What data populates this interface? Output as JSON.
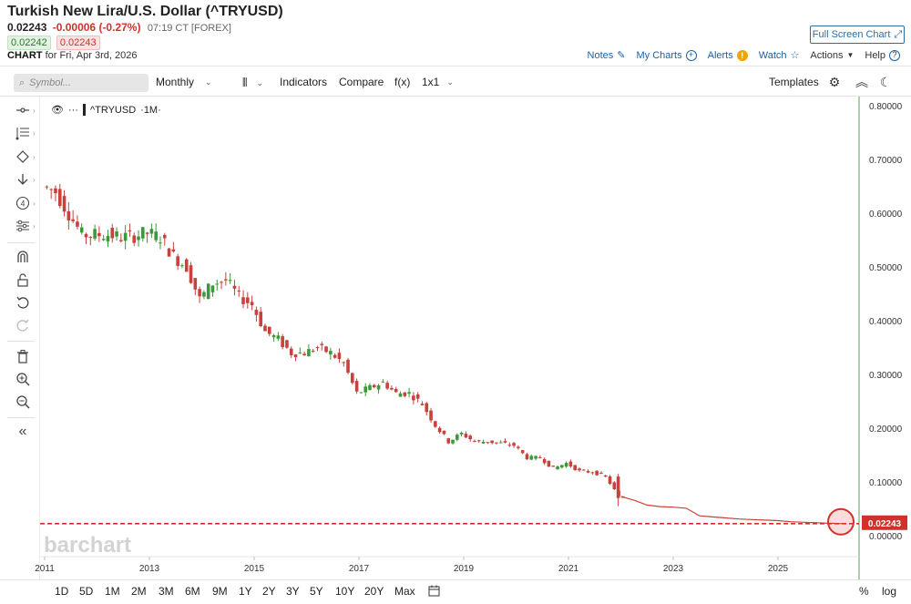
{
  "header": {
    "title": "Turkish New Lira/U.S. Dollar (^TRYUSD)",
    "price": "0.02243",
    "change": "-0.00006 (-0.27%)",
    "time": "07:19 CT [FOREX]",
    "bid": "0.02242",
    "ask": "0.02243",
    "chart_label": "CHART",
    "chart_date": "for Fri, Apr 3rd, 2026",
    "full_screen_label": "Full Screen Chart"
  },
  "top_links": {
    "notes": "Notes",
    "my_charts": "My Charts",
    "alerts": "Alerts",
    "watch": "Watch",
    "actions": "Actions",
    "help": "Help"
  },
  "toolbar": {
    "search_placeholder": "Symbol...",
    "interval": "Monthly",
    "indicators": "Indicators",
    "compare": "Compare",
    "fx": "f(x)",
    "layout": "1x1",
    "templates": "Templates"
  },
  "legend": {
    "dots": "···",
    "symbol": "^TRYUSD",
    "interval": "·1M·"
  },
  "watermark": "barchart",
  "ranges": [
    "1D",
    "5D",
    "1M",
    "2M",
    "3M",
    "6M",
    "9M",
    "1Y",
    "2Y",
    "3Y",
    "5Y",
    "10Y",
    "20Y",
    "Max"
  ],
  "bottom_right": {
    "percent": "%",
    "log": "log"
  },
  "left_tools": [
    "crosshair-tool-icon",
    "line-tool-icon",
    "shape-tool-icon",
    "arrow-tool-icon",
    "counter-tool-icon",
    "pattern-tool-icon",
    "magnet-icon",
    "unlock-icon",
    "undo-icon",
    "redo-icon",
    "trash-icon",
    "zoom-in-icon",
    "zoom-out-icon",
    "collapse-icon"
  ],
  "colors": {
    "up": "#3a9a3a",
    "down": "#c8413a",
    "last_price": "#d0322b",
    "link": "#1d5fa5"
  },
  "chart_data": {
    "type": "candlestick",
    "x_axis_type": "date",
    "ylim": [
      0,
      0.85
    ],
    "yticks": [
      "0.00000",
      "0.10000",
      "0.20000",
      "0.30000",
      "0.40000",
      "0.50000",
      "0.60000",
      "0.70000",
      "0.80000"
    ],
    "xticks": [
      "2011",
      "2013",
      "2015",
      "2017",
      "2019",
      "2021",
      "2023",
      "2025"
    ],
    "last_price_label": "0.02243",
    "last_price": 0.02243,
    "series": [
      {
        "d": "2011-01",
        "v": 0.65
      },
      {
        "d": "2011-04",
        "v": 0.64
      },
      {
        "d": "2011-07",
        "v": 0.6
      },
      {
        "d": "2011-10",
        "v": 0.56
      },
      {
        "d": "2012-01",
        "v": 0.56
      },
      {
        "d": "2012-04",
        "v": 0.56
      },
      {
        "d": "2012-07",
        "v": 0.555
      },
      {
        "d": "2012-10",
        "v": 0.558
      },
      {
        "d": "2013-01",
        "v": 0.563
      },
      {
        "d": "2013-04",
        "v": 0.555
      },
      {
        "d": "2013-07",
        "v": 0.52
      },
      {
        "d": "2013-10",
        "v": 0.5
      },
      {
        "d": "2014-01",
        "v": 0.44
      },
      {
        "d": "2014-04",
        "v": 0.47
      },
      {
        "d": "2014-07",
        "v": 0.475
      },
      {
        "d": "2014-10",
        "v": 0.445
      },
      {
        "d": "2015-01",
        "v": 0.43
      },
      {
        "d": "2015-04",
        "v": 0.38
      },
      {
        "d": "2015-07",
        "v": 0.365
      },
      {
        "d": "2015-10",
        "v": 0.34
      },
      {
        "d": "2016-01",
        "v": 0.34
      },
      {
        "d": "2016-04",
        "v": 0.35
      },
      {
        "d": "2016-07",
        "v": 0.34
      },
      {
        "d": "2016-10",
        "v": 0.32
      },
      {
        "d": "2017-01",
        "v": 0.265
      },
      {
        "d": "2017-04",
        "v": 0.275
      },
      {
        "d": "2017-07",
        "v": 0.285
      },
      {
        "d": "2017-10",
        "v": 0.265
      },
      {
        "d": "2018-01",
        "v": 0.265
      },
      {
        "d": "2018-04",
        "v": 0.245
      },
      {
        "d": "2018-07",
        "v": 0.205
      },
      {
        "d": "2018-10",
        "v": 0.175
      },
      {
        "d": "2019-01",
        "v": 0.19
      },
      {
        "d": "2019-04",
        "v": 0.175
      },
      {
        "d": "2019-07",
        "v": 0.175
      },
      {
        "d": "2019-10",
        "v": 0.172
      },
      {
        "d": "2020-01",
        "v": 0.168
      },
      {
        "d": "2020-04",
        "v": 0.145
      },
      {
        "d": "2020-07",
        "v": 0.145
      },
      {
        "d": "2020-10",
        "v": 0.125
      },
      {
        "d": "2021-01",
        "v": 0.135
      },
      {
        "d": "2021-04",
        "v": 0.12
      },
      {
        "d": "2021-07",
        "v": 0.118
      },
      {
        "d": "2021-10",
        "v": 0.11
      },
      {
        "d": "2022-01",
        "v": 0.073
      },
      {
        "d": "2022-04",
        "v": 0.066
      },
      {
        "d": "2022-07",
        "v": 0.057
      },
      {
        "d": "2022-10",
        "v": 0.054
      },
      {
        "d": "2023-01",
        "v": 0.053
      },
      {
        "d": "2023-04",
        "v": 0.051
      },
      {
        "d": "2023-07",
        "v": 0.037
      },
      {
        "d": "2023-10",
        "v": 0.035
      },
      {
        "d": "2024-01",
        "v": 0.033
      },
      {
        "d": "2024-04",
        "v": 0.031
      },
      {
        "d": "2024-07",
        "v": 0.03
      },
      {
        "d": "2024-10",
        "v": 0.029
      },
      {
        "d": "2025-01",
        "v": 0.028
      },
      {
        "d": "2025-04",
        "v": 0.026
      },
      {
        "d": "2025-07",
        "v": 0.025
      },
      {
        "d": "2025-10",
        "v": 0.024
      },
      {
        "d": "2026-01",
        "v": 0.023
      },
      {
        "d": "2026-04",
        "v": 0.02243
      }
    ]
  }
}
